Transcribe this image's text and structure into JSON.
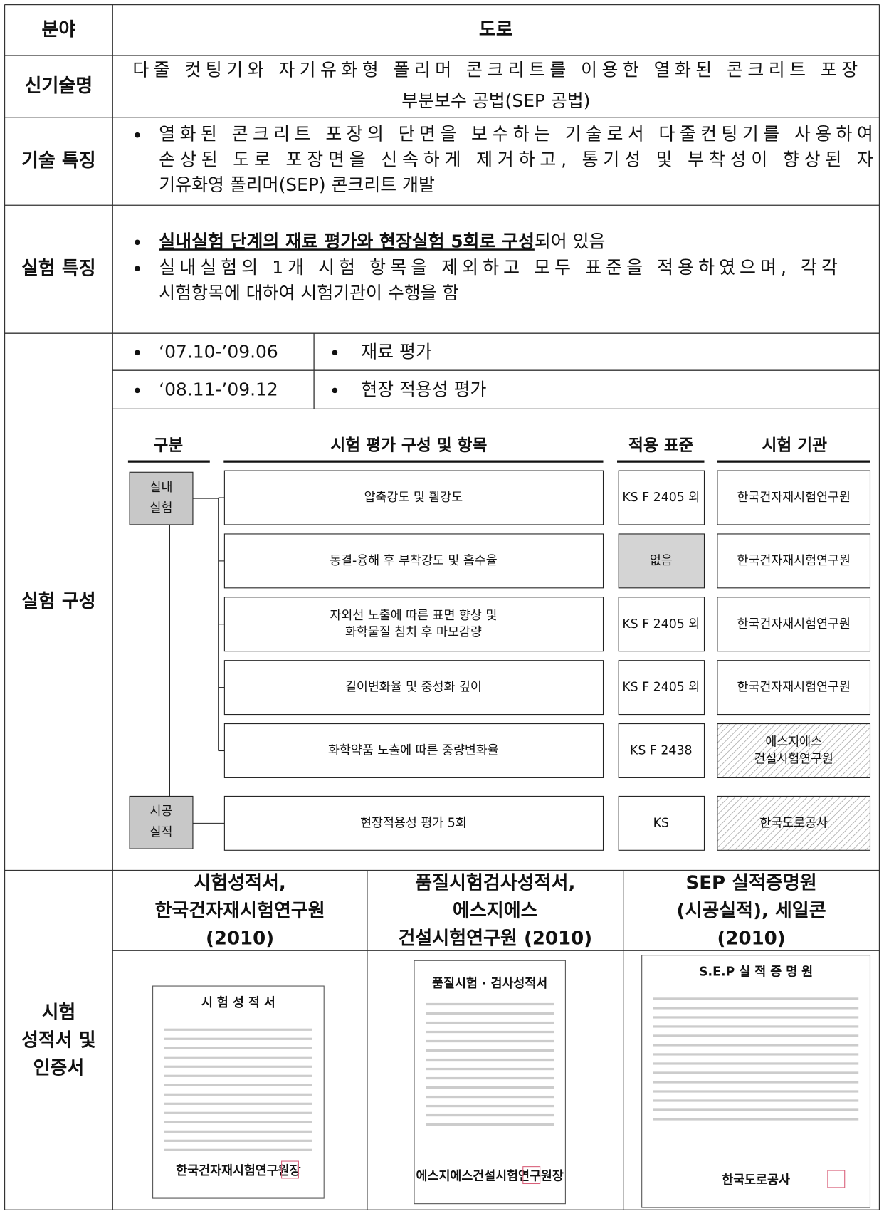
{
  "field": {
    "label": "분야",
    "value": "도로"
  },
  "tech_name": {
    "label": "신기술명",
    "lines": [
      "다줄 컷팅기와 자기유화형 폴리머 콘크리트를 이용한 열화된 콘크리트 포장",
      "부분보수 공법(SEP 공법)"
    ]
  },
  "tech_features": {
    "label": "기술 특징",
    "lines": [
      "열화된 콘크리트 포장의 단면을 보수하는 기술로서 다줄컨팅기를 사용하여",
      "손상된 도로 포장면을 신속하게 제거하고, 통기성 및 부착성이 향상된 자",
      "기유화영 폴리머(SEP) 콘크리트 개발"
    ]
  },
  "test_features": {
    "label": "실험 특징",
    "emphasis": "실내실험 단계의 재료 평가와 현장실험 5회로 구성",
    "emphasis_rest": "되어 있음",
    "lines": [
      "실내실험의 1개 시험 항목을 제외하고 모두 표준을 적용하였으며, 각각",
      "시험항목에 대하여 시험기관이 수행을 함"
    ]
  },
  "test_composition": {
    "label": "실험 구성",
    "schedule": [
      {
        "period": "‘07.10-’09.06",
        "task": "재료 평가"
      },
      {
        "period": "‘08.11-’09.12",
        "task": "현장 적용성 평가"
      }
    ],
    "diagram": {
      "headers": [
        "구분",
        "시험 평가 구성 및 항목",
        "적용 표준",
        "시험 기관"
      ],
      "groups": [
        {
          "label": [
            "실내",
            "실험"
          ],
          "items": [
            {
              "name": [
                "압축강도 및 휨강도"
              ],
              "standard": "KS F 2405 외",
              "institution": [
                "한국건자재시험연구원"
              ]
            },
            {
              "name": [
                "동결-융해 후 부착강도 및 흡수율"
              ],
              "standard": "없음",
              "institution": [
                "한국건자재시험연구원"
              ]
            },
            {
              "name": [
                "자외선 노출에 따른 표면 향상 및",
                "화학물질 침치 후 마모감량"
              ],
              "standard": "KS F 2405 외",
              "institution": [
                "한국건자재시험연구원"
              ]
            },
            {
              "name": [
                "길이변화율 및 중성화 깊이"
              ],
              "standard": "KS F 2405 외",
              "institution": [
                "한국건자재시험연구원"
              ]
            },
            {
              "name": [
                "화학약품 노출에 따른 중량변화율"
              ],
              "standard": "KS F 2438",
              "institution": [
                "에스지에스",
                "건설시험연구원"
              ]
            }
          ]
        },
        {
          "label": [
            "시공",
            "실적"
          ],
          "items": [
            {
              "name": [
                "현장적용성 평가 5회"
              ],
              "standard": "KS",
              "institution": [
                "한국도로공사"
              ]
            }
          ]
        }
      ]
    }
  },
  "certificates": {
    "label": [
      "시험",
      "성적서 및",
      "인증서"
    ],
    "columns": [
      {
        "title": [
          "시험성적서,",
          "한국건자재시험연구원",
          "(2010)"
        ],
        "doc_title": "시 험 성 적 서",
        "doc_signer": "한국건자재시험연구원장"
      },
      {
        "title": [
          "품질시험검사성적서,",
          "에스지에스",
          "건설시험연구원 (2010)"
        ],
        "doc_title": "품질시험 · 검사성적서",
        "doc_signer": "에스지에스건설시험연구원장"
      },
      {
        "title": [
          "SEP 실적증명원",
          "(시공실적), 세일콘",
          "(2010)"
        ],
        "doc_title": "S.E.P 실 적 증 명 원",
        "doc_signer": "한국도로공사"
      }
    ]
  }
}
